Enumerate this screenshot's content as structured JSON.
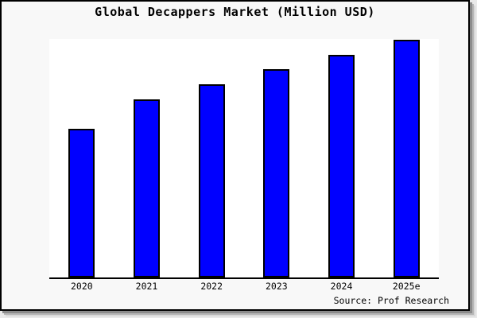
{
  "chart_data": {
    "type": "bar",
    "title": "Global Decappers Market (Million USD)",
    "categories": [
      "2020",
      "2021",
      "2022",
      "2023",
      "2024",
      "2025e"
    ],
    "values_relative": [
      62.5,
      74.9,
      81.3,
      87.6,
      93.6,
      100
    ],
    "value_note": "y-axis is unlabeled; values estimated as percent of tallest bar (2025e = 100)",
    "ylim": [
      0,
      100
    ],
    "xlabel": "",
    "ylabel": "",
    "grid": false,
    "legend": "none",
    "source": "Source: Prof Research",
    "colors": {
      "bar_fill": "#0000ff",
      "bar_border": "#000000",
      "plot_background": "#ffffff",
      "canvas_background": "#f8f8f8",
      "axis": "#000000",
      "text": "#000000"
    }
  }
}
